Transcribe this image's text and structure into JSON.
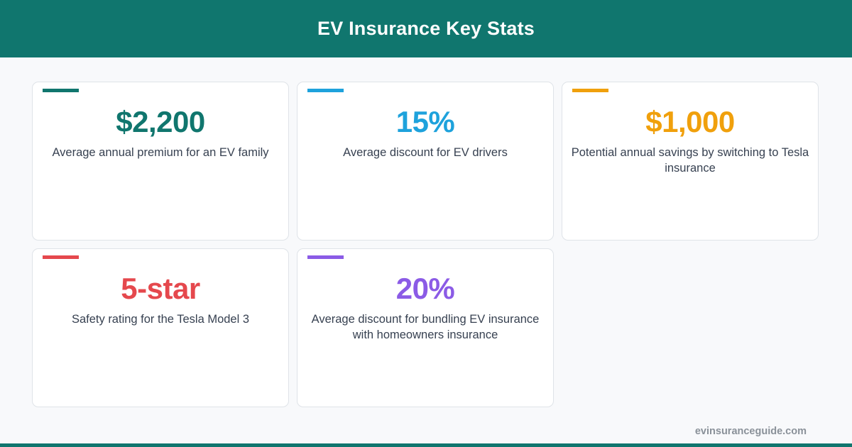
{
  "header": {
    "title": "EV Insurance Key Stats",
    "background_color": "#10766e"
  },
  "cards": [
    {
      "value": "$2,200",
      "description": "Average annual premium for an EV family",
      "color": "#10766e"
    },
    {
      "value": "15%",
      "description": "Average discount for EV drivers",
      "color": "#1ea2dc"
    },
    {
      "value": "$1,000",
      "description": "Potential annual savings by switching to Tesla insurance",
      "color": "#f0a00c"
    },
    {
      "value": "5-star",
      "description": "Safety rating for the Tesla Model 3",
      "color": "#e5484d"
    },
    {
      "value": "20%",
      "description": "Average discount for bundling EV insurance with homeowners insurance",
      "color": "#8b5be6"
    }
  ],
  "footer": {
    "site": "evinsuranceguide.com"
  }
}
